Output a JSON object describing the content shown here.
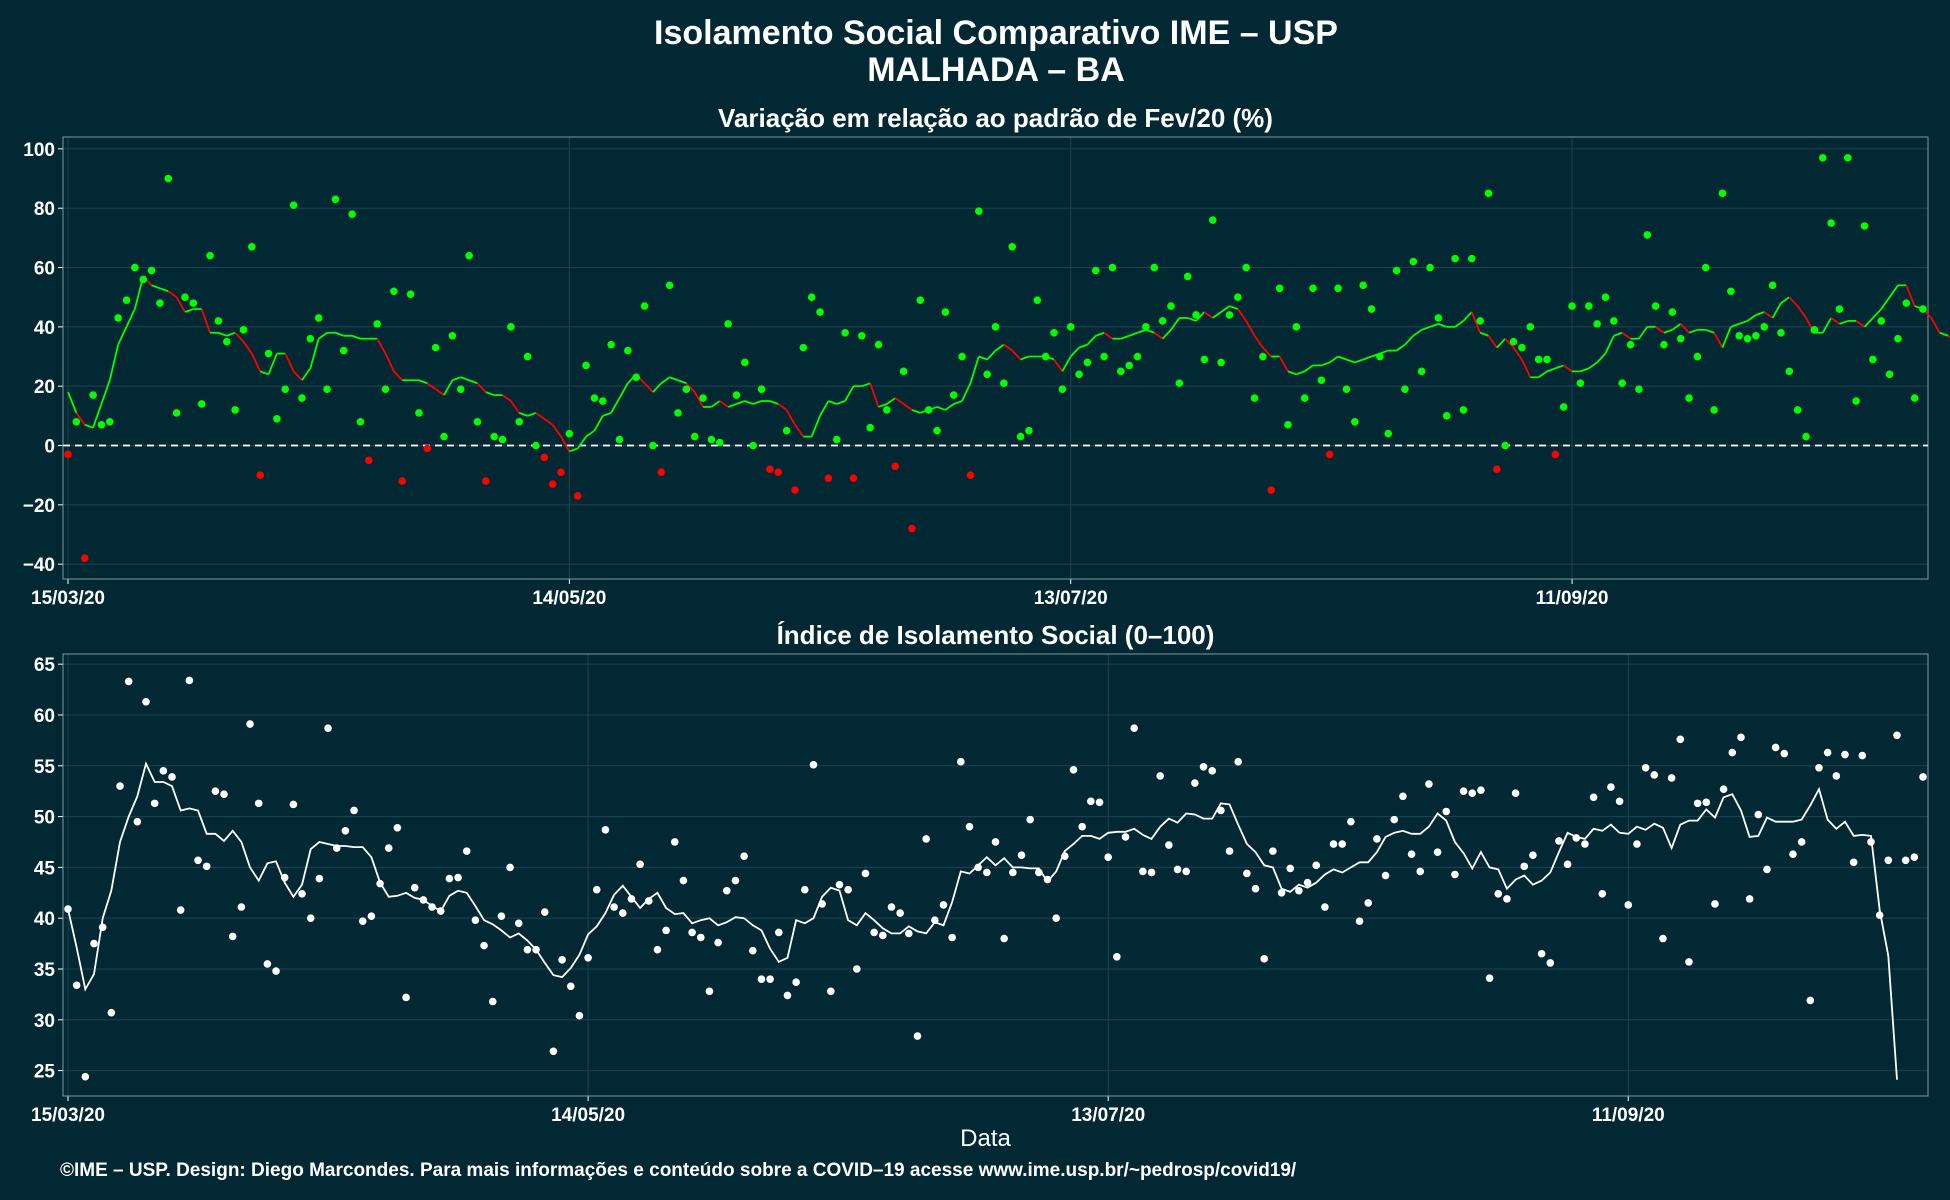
{
  "title_line1": "Isolamento Social Comparativo IME – USP",
  "title_line2": "MALHADA – BA",
  "footer": "©IME – USP. Design: Diego Marcondes. Para mais informações e conteúdo sobre a COVID–19 acesse www.ime.usp.br/~pedrosp/covid19/",
  "colors": {
    "background": "#022833",
    "positive": "#00ff00",
    "negative": "#ff0000",
    "index": "#ffffff",
    "zero_line": "#ffffff"
  },
  "chart_data": [
    {
      "type": "scatter",
      "title": "Variação em relação ao padrão de Fev/20 (%)",
      "xlabel": "",
      "ylabel": "",
      "x_start": "15/03/20",
      "x_ticks": [
        "15/03/20",
        "14/05/20",
        "13/07/20",
        "11/09/20"
      ],
      "y_ticks": [
        100,
        80,
        60,
        40,
        20,
        0,
        -20,
        -40
      ],
      "ylim": [
        -45,
        104
      ],
      "reference_line": 0,
      "grid": true,
      "series": [
        {
          "values": [
            -3,
            8,
            -38,
            17,
            7,
            8,
            43,
            49,
            60,
            56,
            59,
            48,
            90,
            11,
            50,
            48,
            14,
            64,
            42,
            35,
            12,
            39,
            67,
            -10,
            31,
            9,
            19,
            81,
            16,
            36,
            43,
            19,
            83,
            32,
            78,
            8,
            -5,
            41,
            19,
            52,
            -12,
            51,
            11,
            -1,
            33,
            3,
            37,
            19,
            64,
            8,
            -12,
            3,
            2,
            40,
            8,
            30,
            0,
            -4,
            -13,
            -9,
            4,
            -17,
            27,
            16,
            15,
            34,
            2,
            32,
            23,
            47,
            0,
            -9,
            54,
            11,
            19,
            3,
            16,
            2,
            1,
            41,
            17,
            28,
            0,
            19,
            -8,
            -9,
            5,
            -15,
            33,
            50,
            45,
            -11,
            2,
            38,
            -11,
            37,
            6,
            34,
            12,
            -7,
            25,
            -28,
            49,
            12,
            5,
            45,
            17,
            30,
            -10,
            79,
            24,
            40,
            21,
            67,
            3,
            5,
            49,
            30,
            38,
            19,
            40,
            24,
            28,
            59,
            30,
            60,
            25,
            27,
            30,
            40,
            60,
            42,
            47,
            21,
            57,
            44,
            29,
            76,
            28,
            44,
            50,
            60,
            16,
            30,
            -15,
            53,
            7,
            40,
            16,
            53,
            22,
            -3,
            53,
            19,
            8,
            54,
            46,
            30,
            4,
            59,
            19,
            62,
            25,
            60,
            43,
            10,
            63,
            12,
            63,
            42,
            85,
            -8,
            0,
            35,
            33,
            40,
            29,
            29,
            -3,
            13,
            47,
            21,
            47,
            41,
            50,
            42,
            21,
            34,
            19,
            71,
            47,
            34,
            45,
            36,
            16,
            30,
            60,
            12,
            85,
            52,
            37,
            36,
            37,
            40,
            54,
            38,
            25,
            12,
            3,
            39,
            97,
            75,
            46,
            97,
            15,
            74,
            29,
            42,
            24,
            36,
            48,
            16,
            46
          ]
        },
        {
          "values": [
            18,
            11,
            7,
            6,
            14,
            22,
            34,
            40,
            46,
            57,
            54,
            53,
            52,
            50,
            45,
            46,
            46,
            38,
            38,
            37,
            38,
            35,
            31,
            25,
            24,
            31,
            31,
            25,
            22,
            26,
            36,
            38,
            38,
            37,
            37,
            36,
            36,
            36,
            31,
            25,
            22,
            22,
            22,
            21,
            19,
            17,
            22,
            23,
            22,
            21,
            18,
            17,
            17,
            15,
            11,
            10,
            11,
            9,
            7,
            3,
            -2,
            -1,
            3,
            5,
            10,
            11,
            16,
            21,
            24,
            21,
            18,
            21,
            23,
            22,
            21,
            18,
            13,
            13,
            15,
            13,
            14,
            15,
            14,
            15,
            15,
            14,
            12,
            7,
            3,
            3,
            10,
            15,
            14,
            15,
            20,
            20,
            21,
            13,
            14,
            16,
            14,
            12,
            11,
            12,
            13,
            12,
            14,
            15,
            21,
            30,
            29,
            32,
            34,
            32,
            29,
            30,
            30,
            30,
            29,
            25,
            30,
            33,
            34,
            37,
            38,
            36,
            36,
            37,
            38,
            39,
            38,
            36,
            39,
            43,
            43,
            42,
            45,
            43,
            45,
            47,
            46,
            42,
            37,
            33,
            30,
            30,
            25,
            24,
            25,
            27,
            27,
            28,
            30,
            29,
            28,
            29,
            30,
            31,
            32,
            32,
            34,
            37,
            39,
            40,
            41,
            40,
            40,
            42,
            45,
            38,
            37,
            33,
            36,
            33,
            29,
            23,
            23,
            25,
            26,
            27,
            25,
            25,
            26,
            28,
            31,
            37,
            38,
            36,
            36,
            40,
            40,
            38,
            39,
            41,
            38,
            39,
            39,
            38,
            33,
            40,
            41,
            42,
            44,
            45,
            43,
            48,
            50,
            47,
            43,
            38,
            38,
            43,
            41,
            42,
            42,
            40,
            43,
            46,
            50,
            54,
            54,
            47,
            46,
            43,
            38,
            37,
            35,
            38,
            38
          ]
        }
      ]
    },
    {
      "type": "scatter",
      "title": "Índice de Isolamento Social (0–100)",
      "xlabel": "Data",
      "ylabel": "",
      "x_start": "15/03/20",
      "x_ticks": [
        "15/03/20",
        "14/05/20",
        "13/07/20",
        "11/09/20"
      ],
      "y_ticks": [
        65,
        60,
        55,
        50,
        45,
        40,
        35,
        30,
        25
      ],
      "ylim": [
        22.5,
        66
      ],
      "grid": true,
      "series": [
        {
          "values": [
            40.9,
            33.4,
            24.4,
            37.5,
            39.1,
            30.7,
            53.0,
            63.3,
            49.5,
            61.3,
            51.3,
            54.5,
            53.9,
            40.8,
            63.4,
            45.7,
            45.1,
            52.5,
            52.2,
            38.2,
            41.1,
            59.1,
            51.3,
            35.5,
            34.8,
            44.0,
            51.2,
            42.4,
            40.0,
            43.9,
            58.7,
            46.9,
            48.6,
            50.6,
            39.7,
            40.2,
            43.4,
            46.9,
            48.9,
            32.2,
            43.0,
            41.8,
            41.1,
            40.7,
            43.9,
            44.0,
            46.6,
            39.8,
            37.3,
            31.8,
            40.2,
            45.0,
            39.5,
            36.9,
            36.9,
            40.6,
            26.9,
            35.9,
            33.3,
            30.4,
            36.1,
            42.8,
            48.7,
            41.1,
            40.5,
            41.9,
            45.3,
            41.7,
            36.9,
            38.8,
            47.5,
            43.7,
            38.6,
            38.1,
            32.8,
            37.6,
            42.7,
            43.7,
            46.1,
            36.8,
            34.0,
            34.0,
            38.6,
            32.4,
            33.7,
            42.8,
            55.1,
            41.4,
            32.8,
            43.3,
            42.8,
            35.0,
            44.4,
            38.6,
            38.3,
            41.1,
            40.5,
            38.5,
            28.4,
            47.8,
            39.8,
            41.3,
            38.1,
            55.4,
            49.0,
            45.0,
            44.5,
            47.5,
            38.0,
            44.5,
            46.2,
            49.7,
            44.5,
            43.8,
            40.0,
            46.1,
            54.6,
            49.0,
            51.5,
            51.4,
            46.0,
            36.2,
            48.0,
            58.7,
            44.6,
            44.5,
            54.0,
            47.2,
            44.8,
            44.6,
            53.3,
            54.9,
            54.5,
            50.6,
            46.6,
            55.4,
            44.4,
            42.9,
            36.0,
            46.6,
            42.5,
            44.9,
            42.7,
            43.5,
            45.2,
            41.1,
            47.3,
            47.3,
            49.5,
            39.7,
            41.5,
            47.8,
            44.2,
            49.7,
            52.0,
            46.3,
            44.6,
            53.2,
            46.5,
            50.5,
            44.3,
            52.5,
            52.3,
            52.6,
            34.1,
            42.4,
            41.9,
            52.3,
            45.1,
            46.2,
            36.5,
            35.6,
            47.6,
            45.3,
            47.9,
            47.3,
            51.9,
            42.4,
            52.9,
            51.5,
            41.3,
            47.3,
            54.8,
            54.1,
            38.0,
            53.8,
            57.6,
            35.7,
            51.3,
            51.4,
            41.4,
            52.7,
            56.3,
            57.8,
            41.9,
            50.2,
            44.8,
            56.8,
            56.2,
            46.3,
            47.5,
            31.9,
            54.8,
            56.3,
            54.0,
            56.1,
            45.5,
            56.0,
            47.5,
            40.3,
            45.7,
            58.0,
            45.7,
            46.0,
            53.9
          ]
        },
        {
          "values": [
            40.9,
            37.1,
            33.0,
            34.5,
            40.0,
            42.7,
            47.5,
            50.0,
            52.0,
            55.2,
            53.4,
            53.4,
            53.0,
            50.6,
            50.8,
            50.6,
            48.3,
            48.3,
            47.6,
            48.6,
            47.5,
            45.0,
            43.7,
            45.4,
            45.6,
            43.5,
            42.1,
            43.3,
            46.8,
            47.5,
            47.3,
            47.1,
            47.1,
            47.0,
            47.0,
            46.0,
            43.5,
            42.1,
            42.2,
            42.5,
            42.0,
            41.8,
            41.2,
            40.7,
            42.2,
            42.7,
            42.5,
            41.2,
            39.8,
            39.4,
            38.8,
            38.1,
            38.5,
            37.8,
            36.9,
            35.6,
            34.4,
            34.2,
            35.1,
            36.4,
            38.4,
            39.2,
            40.5,
            42.3,
            43.2,
            42.1,
            41.0,
            41.9,
            42.5,
            41.0,
            40.4,
            40.5,
            39.5,
            39.8,
            40.0,
            39.3,
            39.6,
            40.1,
            40.0,
            39.3,
            38.8,
            37.0,
            35.7,
            36.1,
            39.8,
            39.5,
            40.0,
            42.1,
            43.0,
            42.7,
            39.8,
            39.3,
            40.5,
            39.8,
            39.0,
            38.5,
            38.5,
            39.2,
            38.7,
            38.5,
            39.6,
            39.3,
            41.6,
            44.6,
            44.4,
            45.2,
            46.0,
            45.2,
            45.9,
            45.0,
            45.0,
            44.9,
            44.9,
            43.6,
            44.6,
            46.6,
            47.3,
            48.1,
            48.1,
            47.8,
            48.4,
            48.5,
            48.5,
            48.8,
            48.2,
            47.8,
            49.0,
            49.8,
            49.4,
            50.3,
            50.2,
            49.8,
            49.8,
            51.3,
            51.2,
            49.2,
            47.3,
            46.5,
            45.2,
            45.0,
            42.9,
            42.6,
            43.3,
            43.0,
            43.5,
            44.3,
            44.8,
            44.5,
            45.0,
            45.5,
            45.5,
            46.5,
            48.0,
            48.4,
            48.6,
            48.3,
            48.3,
            49.0,
            50.3,
            49.6,
            47.5,
            46.4,
            44.9,
            46.5,
            45.0,
            44.8,
            42.9,
            43.8,
            44.2,
            43.3,
            43.7,
            44.5,
            46.5,
            48.4,
            48.0,
            47.8,
            48.8,
            48.6,
            49.2,
            48.4,
            48.3,
            49.0,
            48.7,
            49.3,
            48.9,
            46.9,
            49.2,
            49.6,
            49.6,
            50.7,
            49.9,
            51.9,
            52.2,
            50.6,
            48.0,
            48.1,
            49.9,
            49.5,
            49.5,
            49.5,
            49.7,
            51.1,
            52.7,
            49.7,
            48.8,
            49.5,
            48.1,
            48.2,
            48.1,
            40.8,
            36.3,
            24.1
          ]
        }
      ]
    }
  ]
}
